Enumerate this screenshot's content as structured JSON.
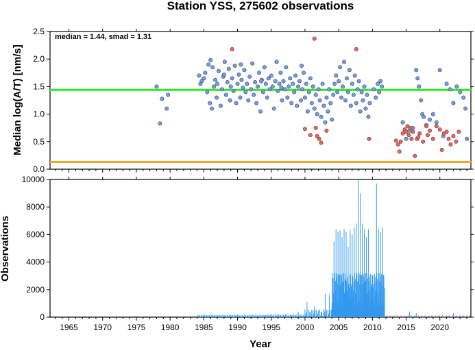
{
  "chart_data": [
    {
      "type": "scatter",
      "title": "Station YSS, 275602 observations",
      "xlabel": "",
      "ylabel": "Median log(A/T) [nm/s]",
      "xlim": [
        1962.2,
        2024.6
      ],
      "ylim": [
        0,
        2.5
      ],
      "yticks": [
        "0.0",
        "0.5",
        "1.0",
        "1.5",
        "2.0",
        "2.5"
      ],
      "annotation": "median = 1.44, smad = 1.31",
      "reference_lines": [
        {
          "value": 1.44,
          "color": "#22ee22"
        },
        {
          "value": 0.13,
          "color": "#f5a623"
        }
      ],
      "point_colors": {
        "normal": "#6f9fec",
        "outlier": "#f2625c"
      },
      "series": [
        {
          "values": [
            [
              1978.0,
              1.5
            ],
            [
              1978.5,
              0.83
            ],
            [
              1978.8,
              1.28
            ],
            [
              1979.5,
              1.1
            ],
            [
              1979.7,
              1.35
            ],
            [
              1984.3,
              1.7
            ],
            [
              1984.5,
              1.55
            ],
            [
              1984.7,
              1.6
            ],
            [
              1985.0,
              1.65
            ],
            [
              1985.2,
              1.75
            ],
            [
              1985.5,
              1.4
            ],
            [
              1985.7,
              1.9
            ],
            [
              1985.9,
              1.2
            ],
            [
              1986.0,
              1.98
            ],
            [
              1986.2,
              1.1
            ],
            [
              1986.5,
              1.5
            ],
            [
              1986.7,
              1.62
            ],
            [
              1986.9,
              1.3
            ],
            [
              1987.0,
              1.55
            ],
            [
              1987.2,
              1.78
            ],
            [
              1987.5,
              1.15
            ],
            [
              1987.7,
              1.45
            ],
            [
              1987.9,
              1.68
            ],
            [
              1988.1,
              1.95
            ],
            [
              1988.3,
              1.35
            ],
            [
              1988.5,
              1.58
            ],
            [
              1988.7,
              1.82
            ],
            [
              1988.9,
              1.25
            ],
            [
              1989.0,
              1.5
            ],
            [
              1989.2,
              1.65
            ],
            [
              1989.4,
              1.42
            ],
            [
              1989.6,
              1.88
            ],
            [
              1989.8,
              1.2
            ],
            [
              1990.0,
              1.55
            ],
            [
              1990.2,
              1.72
            ],
            [
              1990.4,
              1.3
            ],
            [
              1990.6,
              1.62
            ],
            [
              1990.8,
              1.48
            ],
            [
              1991.0,
              1.8
            ],
            [
              1991.2,
              1.4
            ],
            [
              1991.4,
              1.55
            ],
            [
              1991.6,
              1.25
            ],
            [
              1991.8,
              1.68
            ],
            [
              1992.0,
              1.45
            ],
            [
              1992.2,
              1.92
            ],
            [
              1992.4,
              1.35
            ],
            [
              1992.6,
              1.58
            ],
            [
              1992.8,
              1.2
            ],
            [
              1993.0,
              1.5
            ],
            [
              1993.2,
              1.75
            ],
            [
              1993.4,
              1.05
            ],
            [
              1993.6,
              1.62
            ],
            [
              1993.8,
              1.4
            ],
            [
              1994.0,
              1.85
            ],
            [
              1994.2,
              1.55
            ],
            [
              1994.4,
              1.3
            ],
            [
              1994.6,
              1.65
            ],
            [
              1994.8,
              1.45
            ],
            [
              1995.0,
              1.7
            ],
            [
              1995.2,
              1.5
            ],
            [
              1995.4,
              1.1
            ],
            [
              1995.6,
              1.6
            ],
            [
              1995.8,
              1.95
            ],
            [
              1996.0,
              1.42
            ],
            [
              1996.2,
              1.55
            ],
            [
              1996.4,
              1.75
            ],
            [
              1996.6,
              1.25
            ],
            [
              1996.8,
              1.6
            ],
            [
              1997.0,
              1.45
            ],
            [
              1997.2,
              1.85
            ],
            [
              1997.4,
              1.3
            ],
            [
              1997.6,
              1.5
            ],
            [
              1997.8,
              1.65
            ],
            [
              1998.0,
              1.2
            ],
            [
              1998.2,
              1.55
            ],
            [
              1998.4,
              1.4
            ],
            [
              1998.6,
              1.7
            ],
            [
              1998.8,
              1.15
            ],
            [
              1999.0,
              1.5
            ],
            [
              1999.2,
              1.6
            ],
            [
              1999.4,
              1.25
            ],
            [
              1999.6,
              1.45
            ],
            [
              1999.8,
              1.75
            ],
            [
              2000.0,
              1.3
            ],
            [
              2000.2,
              1.55
            ],
            [
              2000.4,
              1.05
            ],
            [
              2000.6,
              1.4
            ],
            [
              2000.8,
              1.65
            ],
            [
              2001.0,
              1.2
            ],
            [
              2001.2,
              1.5
            ],
            [
              2001.4,
              1.1
            ],
            [
              2001.6,
              1.35
            ],
            [
              2001.8,
              1.0
            ],
            [
              2002.0,
              1.45
            ],
            [
              2002.2,
              1.25
            ],
            [
              2002.4,
              0.95
            ],
            [
              2002.6,
              1.55
            ],
            [
              2002.8,
              1.15
            ],
            [
              2003.0,
              0.85
            ],
            [
              2003.2,
              1.3
            ],
            [
              2003.4,
              1.05
            ],
            [
              2003.6,
              1.45
            ],
            [
              2003.8,
              1.2
            ],
            [
              2004.0,
              0.9
            ],
            [
              2004.2,
              1.35
            ],
            [
              2004.4,
              1.55
            ],
            [
              2004.6,
              1.7
            ],
            [
              2004.8,
              1.4
            ],
            [
              2005.0,
              1.6
            ],
            [
              2005.2,
              1.85
            ],
            [
              2005.4,
              1.3
            ],
            [
              2005.6,
              1.5
            ],
            [
              2005.8,
              1.95
            ],
            [
              2006.0,
              1.25
            ],
            [
              2006.2,
              1.65
            ],
            [
              2006.4,
              1.4
            ],
            [
              2006.6,
              1.8
            ],
            [
              2006.8,
              1.15
            ],
            [
              2007.0,
              1.55
            ],
            [
              2007.2,
              1.35
            ],
            [
              2007.4,
              1.7
            ],
            [
              2007.6,
              1.2
            ],
            [
              2007.8,
              1.45
            ],
            [
              2008.0,
              1.6
            ],
            [
              2008.2,
              1.05
            ],
            [
              2008.4,
              1.4
            ],
            [
              2008.6,
              1.25
            ],
            [
              2008.8,
              1.5
            ],
            [
              2009.0,
              1.1
            ],
            [
              2009.2,
              1.35
            ],
            [
              2009.4,
              0.95
            ],
            [
              2009.6,
              1.2
            ],
            [
              2010.2,
              1.45
            ],
            [
              2010.5,
              1.3
            ],
            [
              2010.8,
              1.55
            ],
            [
              2011.0,
              1.4
            ],
            [
              2011.2,
              1.6
            ],
            [
              2011.4,
              1.5
            ],
            [
              2014.5,
              0.85
            ],
            [
              2015.5,
              0.7
            ],
            [
              2016.5,
              1.8
            ],
            [
              2016.7,
              1.65
            ],
            [
              2016.9,
              1.5
            ],
            [
              2017.2,
              1.25
            ],
            [
              2017.4,
              1.0
            ],
            [
              2017.6,
              0.95
            ],
            [
              2018.5,
              0.9
            ],
            [
              2019.0,
              1.0
            ],
            [
              2019.5,
              0.85
            ],
            [
              2020.0,
              1.8
            ],
            [
              2020.5,
              0.6
            ],
            [
              2021.0,
              1.55
            ],
            [
              2021.5,
              1.45
            ],
            [
              2022.0,
              1.2
            ],
            [
              2022.5,
              1.5
            ],
            [
              2023.0,
              1.4
            ],
            [
              2023.5,
              1.3
            ],
            [
              2024.0,
              0.55
            ],
            [
              2023.8,
              1.1
            ],
            [
              2018.0,
              0.8
            ],
            [
              2016.0,
              0.75
            ],
            [
              2015.0,
              0.55
            ],
            [
              1986.3,
              1.85
            ],
            [
              1988.0,
              1.72
            ],
            [
              1990.5,
              1.9
            ],
            [
              1993.5,
              1.6
            ],
            [
              1996.5,
              1.48
            ],
            [
              1999.5,
              1.88
            ]
          ]
        },
        {
          "values": [
            [
              1989.2,
              2.18
            ],
            [
              2000.0,
              0.73
            ],
            [
              2000.8,
              0.62
            ],
            [
              2001.4,
              2.37
            ],
            [
              2001.6,
              0.75
            ],
            [
              2001.8,
              0.6
            ],
            [
              2002.1,
              0.55
            ],
            [
              2002.4,
              0.48
            ],
            [
              2003.2,
              0.7
            ],
            [
              2007.6,
              2.18
            ],
            [
              2009.5,
              0.55
            ],
            [
              2013.5,
              0.52
            ],
            [
              2013.8,
              0.45
            ],
            [
              2014.0,
              0.32
            ],
            [
              2014.2,
              0.5
            ],
            [
              2014.5,
              0.65
            ],
            [
              2014.8,
              0.72
            ],
            [
              2015.0,
              0.68
            ],
            [
              2015.2,
              0.78
            ],
            [
              2015.4,
              0.62
            ],
            [
              2015.6,
              0.75
            ],
            [
              2015.8,
              0.55
            ],
            [
              2016.0,
              0.68
            ],
            [
              2016.3,
              0.24
            ],
            [
              2016.6,
              0.55
            ],
            [
              2017.0,
              0.65
            ],
            [
              2017.5,
              0.5
            ],
            [
              2018.0,
              0.78
            ],
            [
              2018.5,
              0.7
            ],
            [
              2019.0,
              0.55
            ],
            [
              2019.5,
              0.78
            ],
            [
              2020.0,
              0.72
            ],
            [
              2020.3,
              0.35
            ],
            [
              2020.6,
              0.65
            ],
            [
              2021.0,
              0.68
            ],
            [
              2021.3,
              0.55
            ],
            [
              2021.6,
              0.45
            ],
            [
              2022.0,
              0.6
            ],
            [
              2022.4,
              0.5
            ],
            [
              2022.8,
              0.68
            ],
            [
              2018.2,
              0.62
            ],
            [
              2016.8,
              0.58
            ]
          ]
        }
      ]
    },
    {
      "type": "bar",
      "xlabel": "Year",
      "ylabel": "Observations",
      "xlim": [
        1962.2,
        2024.6
      ],
      "ylim": [
        0,
        10000
      ],
      "yticks": [
        "0",
        "2000",
        "4000",
        "6000",
        "8000",
        "10000"
      ],
      "xticks": [
        "1965",
        "1970",
        "1975",
        "1980",
        "1985",
        "1990",
        "1995",
        "2000",
        "2005",
        "2010",
        "2015",
        "2020"
      ],
      "bar_color": "#3399ee",
      "outlier_bar_color": "#f2625c",
      "low_activity": [
        [
          1984,
          1994,
          250
        ],
        [
          1994,
          2000,
          300
        ],
        [
          2000,
          2004,
          900
        ]
      ],
      "peaks": [
        [
          2004.3,
          5500
        ],
        [
          2004.6,
          6400
        ],
        [
          2004.9,
          6200
        ],
        [
          2005.2,
          6300
        ],
        [
          2005.5,
          5800
        ],
        [
          2005.8,
          6400
        ],
        [
          2006.1,
          6200
        ],
        [
          2006.4,
          5100
        ],
        [
          2006.7,
          6300
        ],
        [
          2007.0,
          6000
        ],
        [
          2007.3,
          6500
        ],
        [
          2007.6,
          6800
        ],
        [
          2007.9,
          10000
        ],
        [
          2008.2,
          9000
        ],
        [
          2008.5,
          6800
        ],
        [
          2008.8,
          6400
        ],
        [
          2009.1,
          5800
        ],
        [
          2009.4,
          6400
        ],
        [
          2010.0,
          3000
        ],
        [
          2010.6,
          9700
        ],
        [
          2010.9,
          6400
        ],
        [
          2011.2,
          6200
        ],
        [
          2011.5,
          6500
        ],
        [
          2000.3,
          1100
        ],
        [
          2001.4,
          800
        ],
        [
          2003.0,
          1700
        ],
        [
          2003.6,
          1600
        ],
        [
          1999.0,
          400
        ],
        [
          2015.5,
          400
        ],
        [
          2016.5,
          300
        ],
        [
          2022.0,
          300
        ]
      ]
    }
  ]
}
